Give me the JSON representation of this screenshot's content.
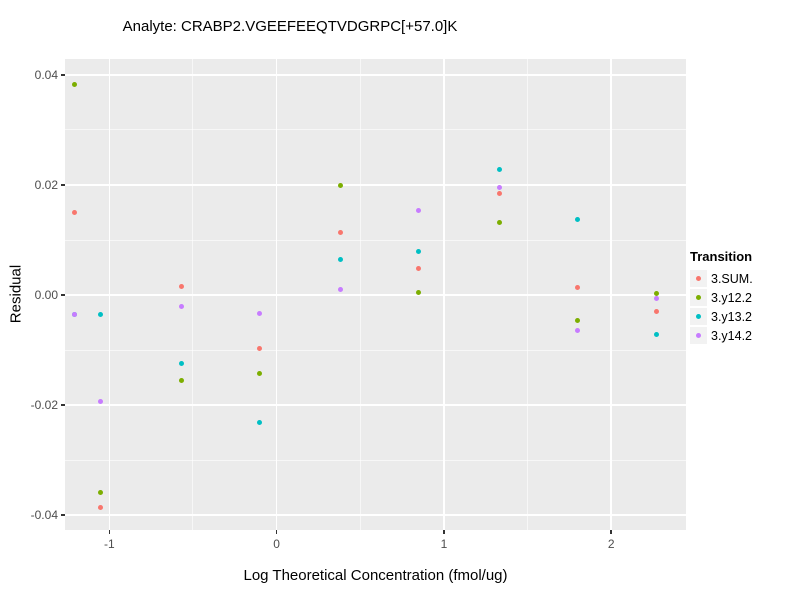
{
  "title": "Analyte: CRABP2.VGEEFEEQTVDGRPC[+57.0]K",
  "x_axis": {
    "label": "Log Theoretical Concentration (fmol/ug)",
    "tick_labels": [
      "-1",
      "0",
      "1",
      "2"
    ],
    "tick_values": [
      -1,
      0,
      1,
      2
    ],
    "minor_values": [
      -0.5,
      0.5,
      1.5
    ]
  },
  "y_axis": {
    "label": "Residual",
    "tick_labels": [
      "0.04",
      "0.02",
      "0.00",
      "-0.02",
      "-0.04"
    ],
    "tick_values": [
      0.04,
      0.02,
      0.0,
      -0.02,
      -0.04
    ],
    "minor_values": [
      0.03,
      0.01,
      -0.01,
      -0.03
    ]
  },
  "legend": {
    "title": "Transition",
    "position": "right"
  },
  "colors": {
    "panel_background": "#EBEBEB",
    "gridline": "#FFFFFF",
    "tick_label": "#4D4D4D",
    "legend_key_background": "#F2F2F2"
  },
  "chart_data": {
    "type": "scatter",
    "title": "Analyte: CRABP2.VGEEFEEQTVDGRPC[+57.0]K",
    "xlabel": "Log Theoretical Concentration (fmol/ug)",
    "ylabel": "Residual",
    "xlim": [
      -1.265,
      2.447
    ],
    "ylim": [
      -0.0427,
      0.0429
    ],
    "grid": true,
    "legend_title": "Transition",
    "legend_position": "right",
    "x": [
      -1.21,
      -1.05,
      -0.57,
      -0.1,
      0.38,
      0.85,
      1.33,
      1.8,
      2.27
    ],
    "series": [
      {
        "name": "3.SUM.",
        "color": "#F8766D",
        "values": [
          0.015,
          -0.0387,
          0.0016,
          -0.0098,
          0.0114,
          0.0049,
          0.0185,
          0.0014,
          -0.0029
        ]
      },
      {
        "name": "3.y12.2",
        "color": "#7CAE00",
        "values": [
          0.0383,
          -0.0358,
          -0.0156,
          -0.0142,
          0.02,
          0.0005,
          0.0132,
          -0.0046,
          0.0002
        ]
      },
      {
        "name": "3.y13.2",
        "color": "#00BFC4",
        "values": [
          -0.0036,
          -0.0036,
          -0.0125,
          -0.0231,
          0.0064,
          0.0079,
          0.0229,
          0.0137,
          -0.0072
        ]
      },
      {
        "name": "3.y14.2",
        "color": "#C77CFF",
        "values": [
          -0.0035,
          -0.0194,
          -0.0021,
          -0.0034,
          0.001,
          0.0153,
          0.0196,
          -0.0064,
          -0.0007
        ]
      }
    ]
  }
}
